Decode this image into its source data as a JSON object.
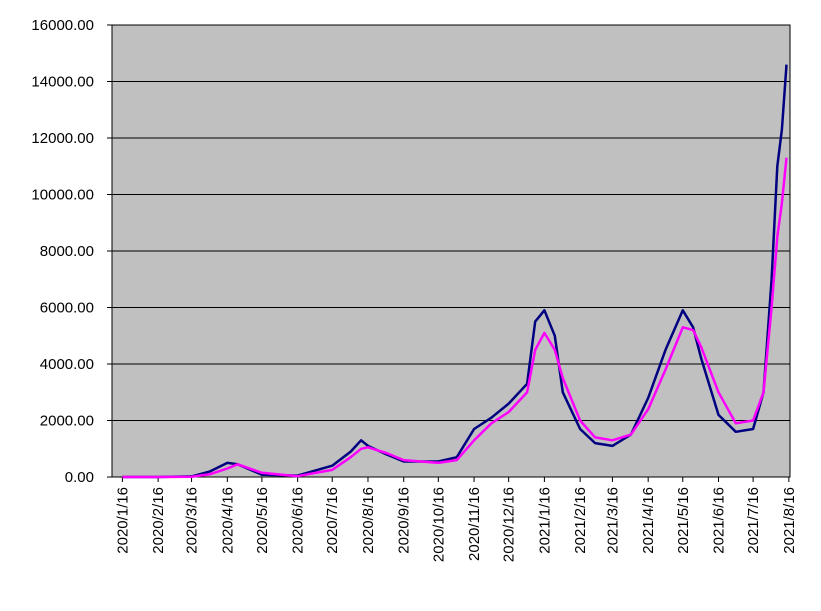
{
  "chart_data": {
    "type": "line",
    "x": [
      "2020/1/16",
      "2020/2/16",
      "2020/3/16",
      "2020/4/1",
      "2020/4/16",
      "2020/4/25",
      "2020/5/16",
      "2020/6/16",
      "2020/7/16",
      "2020/8/1",
      "2020/8/10",
      "2020/8/16",
      "2020/9/1",
      "2020/9/16",
      "2020/10/16",
      "2020/11/1",
      "2020/11/16",
      "2020/12/1",
      "2020/12/16",
      "2021/1/1",
      "2021/1/8",
      "2021/1/16",
      "2021/1/25",
      "2021/2/1",
      "2021/2/16",
      "2021/3/1",
      "2021/3/16",
      "2021/4/1",
      "2021/4/16",
      "2021/5/1",
      "2021/5/16",
      "2021/5/25",
      "2021/6/1",
      "2021/6/16",
      "2021/7/1",
      "2021/7/16",
      "2021/7/25",
      "2021/8/1",
      "2021/8/6",
      "2021/8/10",
      "2021/8/14"
    ],
    "series": [
      {
        "color": "#000080",
        "values": [
          0,
          0,
          20,
          200,
          500,
          450,
          80,
          50,
          400,
          900,
          1300,
          1100,
          800,
          550,
          550,
          700,
          1700,
          2100,
          2600,
          3300,
          5500,
          5900,
          5000,
          3000,
          1700,
          1200,
          1100,
          1500,
          2800,
          4500,
          5900,
          5300,
          4200,
          2200,
          1600,
          1700,
          3000,
          7000,
          11000,
          12300,
          14600
        ]
      },
      {
        "color": "#ff00ff",
        "values": [
          0,
          0,
          10,
          100,
          300,
          450,
          150,
          30,
          250,
          700,
          1000,
          1050,
          850,
          600,
          500,
          600,
          1300,
          1900,
          2300,
          3000,
          4500,
          5100,
          4500,
          3500,
          2000,
          1400,
          1300,
          1500,
          2400,
          3800,
          5300,
          5200,
          4600,
          3000,
          1900,
          2000,
          3000,
          6000,
          8500,
          9700,
          11300
        ]
      }
    ],
    "xlim": [
      "2020/1/7",
      "2021/8/17"
    ],
    "xticks": [
      "2020/1/16",
      "2020/2/16",
      "2020/3/16",
      "2020/4/16",
      "2020/5/16",
      "2020/6/16",
      "2020/7/16",
      "2020/8/16",
      "2020/9/16",
      "2020/10/16",
      "2020/11/16",
      "2020/12/16",
      "2021/1/16",
      "2021/2/16",
      "2021/3/16",
      "2021/4/16",
      "2021/5/16",
      "2021/6/16",
      "2021/7/16",
      "2021/8/16"
    ],
    "ylim": [
      0,
      16000
    ],
    "yticks": [
      {
        "value": 0,
        "label": "0.00"
      },
      {
        "value": 2000,
        "label": "2000.00"
      },
      {
        "value": 4000,
        "label": "4000.00"
      },
      {
        "value": 6000,
        "label": "6000.00"
      },
      {
        "value": 8000,
        "label": "8000.00"
      },
      {
        "value": 10000,
        "label": "10000.00"
      },
      {
        "value": 12000,
        "label": "12000.00"
      },
      {
        "value": 14000,
        "label": "14000.00"
      },
      {
        "value": 16000,
        "label": "16000.00"
      }
    ],
    "grid": true
  }
}
